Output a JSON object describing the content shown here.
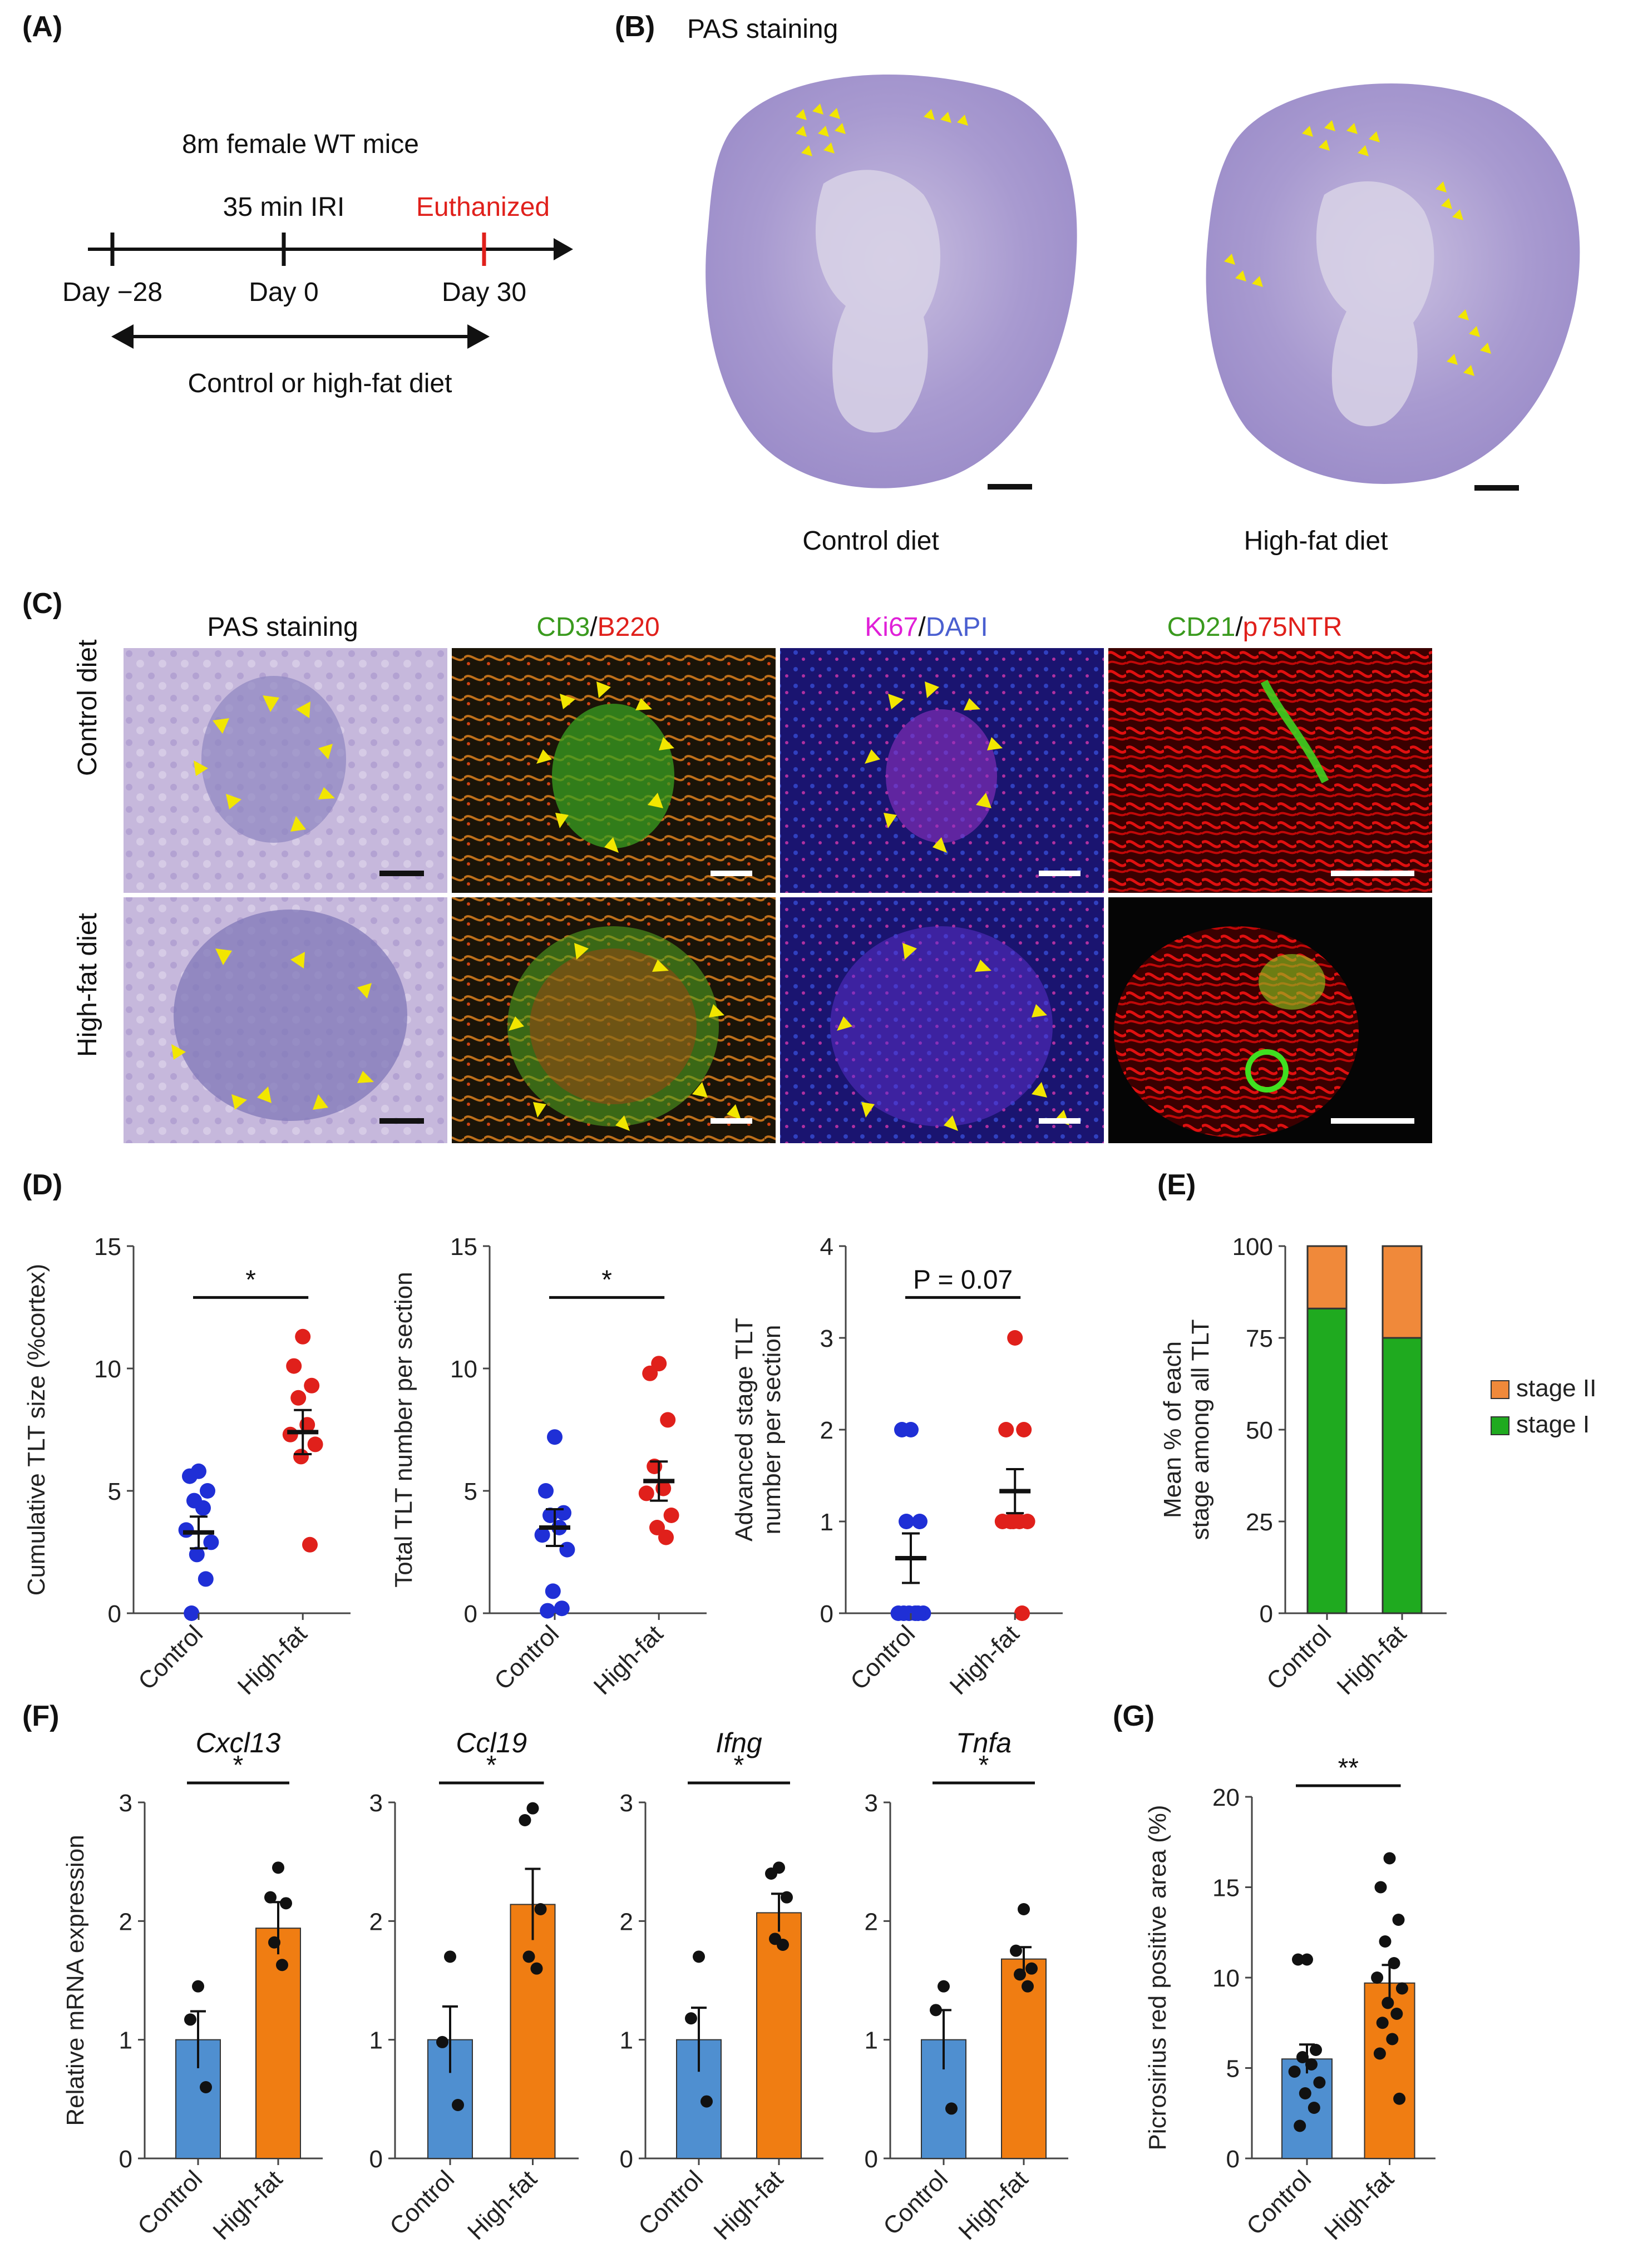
{
  "panels": {
    "A": {
      "label": "(A)",
      "cohort": "8m female WT mice",
      "events": [
        {
          "label": "35 min IRI",
          "color": "#111111"
        },
        {
          "label": "Euthanized",
          "color": "#e0201b"
        }
      ],
      "timepoints": [
        "Day −28",
        "Day 0",
        "Day 30"
      ],
      "diet_label": "Control or high-fat diet"
    },
    "B": {
      "label": "(B)",
      "title": "PAS staining",
      "captions": [
        "Control diet",
        "High-fat diet"
      ]
    },
    "C": {
      "label": "(C)",
      "columns": [
        {
          "parts": [
            {
              "text": "PAS staining",
              "color": "#111111"
            }
          ]
        },
        {
          "parts": [
            {
              "text": "CD3",
              "color": "#3a9a1e"
            },
            {
              "text": "/",
              "color": "#111111"
            },
            {
              "text": "B220",
              "color": "#e0201b"
            }
          ]
        },
        {
          "parts": [
            {
              "text": "Ki67",
              "color": "#e020d8"
            },
            {
              "text": "/",
              "color": "#111111"
            },
            {
              "text": "DAPI",
              "color": "#4a5fd0"
            }
          ]
        },
        {
          "parts": [
            {
              "text": "CD21",
              "color": "#3a9a1e"
            },
            {
              "text": "/",
              "color": "#111111"
            },
            {
              "text": "p75NTR",
              "color": "#e0201b"
            }
          ]
        }
      ],
      "rows": [
        "Control diet",
        "High-fat diet"
      ]
    },
    "D": {
      "label": "(D)"
    },
    "E": {
      "label": "(E)"
    },
    "F": {
      "label": "(F)"
    },
    "G": {
      "label": "(G)"
    }
  },
  "colors": {
    "blue_dot": "#1f2fd6",
    "red_dot": "#e0201b",
    "bar_blue": "#4f8fd0",
    "bar_orange": "#f07d12",
    "stage_green": "#1faa1f",
    "stage_orange": "#f0893a",
    "arrow_yellow": "#f2e600"
  },
  "chart_data": [
    {
      "id": "D1",
      "type": "scatter",
      "categories": [
        "Control",
        "High-fat"
      ],
      "ylabel": "Cumulative TLT size (%cortex)",
      "ylim": [
        0,
        15
      ],
      "yticks": [
        0,
        5,
        10,
        15
      ],
      "significance": "*",
      "groups": [
        {
          "name": "Control",
          "mean": 3.3,
          "sem": 0.65,
          "points": [
            5.8,
            5.6,
            5.0,
            4.6,
            4.3,
            3.4,
            2.9,
            2.4,
            1.4,
            0.0
          ]
        },
        {
          "name": "High-fat",
          "mean": 7.4,
          "sem": 0.9,
          "points": [
            11.3,
            10.1,
            9.3,
            8.8,
            7.7,
            7.3,
            6.9,
            6.4,
            2.8
          ]
        }
      ]
    },
    {
      "id": "D2",
      "type": "scatter",
      "categories": [
        "Control",
        "High-fat"
      ],
      "ylabel": "Total TLT number per section",
      "ylim": [
        0,
        15
      ],
      "yticks": [
        0,
        5,
        10,
        15
      ],
      "significance": "*",
      "groups": [
        {
          "name": "Control",
          "mean": 3.5,
          "sem": 0.75,
          "points": [
            7.2,
            5.0,
            4.1,
            4.0,
            3.5,
            3.2,
            2.6,
            0.9,
            0.2,
            0.1
          ]
        },
        {
          "name": "High-fat",
          "mean": 5.4,
          "sem": 0.8,
          "points": [
            10.2,
            9.8,
            7.9,
            6.0,
            5.1,
            4.9,
            4.0,
            3.5,
            3.1
          ]
        }
      ]
    },
    {
      "id": "D3",
      "type": "scatter",
      "categories": [
        "Control",
        "High-fat"
      ],
      "ylabel": "Advanced stage TLT number per section",
      "ylim": [
        0,
        4
      ],
      "yticks": [
        0,
        1,
        2,
        3,
        4
      ],
      "significance_text": "P = 0.07",
      "groups": [
        {
          "name": "Control",
          "mean": 0.6,
          "sem": 0.27,
          "points": [
            2.0,
            2.0,
            1.0,
            1.0,
            0.0,
            0.0,
            0.0,
            0.0,
            0.0,
            0.0
          ]
        },
        {
          "name": "High-fat",
          "mean": 1.33,
          "sem": 0.24,
          "points": [
            3.0,
            2.0,
            2.0,
            1.0,
            1.0,
            1.0,
            1.0,
            1.0,
            0.0
          ]
        }
      ]
    },
    {
      "id": "E",
      "type": "bar",
      "stacked": true,
      "categories": [
        "Control",
        "High-fat"
      ],
      "ylabel": "Mean % of each stage among all TLT",
      "ylim": [
        0,
        100
      ],
      "yticks": [
        0,
        25,
        50,
        75,
        100
      ],
      "series": [
        {
          "name": "stage I",
          "values": [
            83,
            75
          ]
        },
        {
          "name": "stage II",
          "values": [
            17,
            25
          ]
        }
      ],
      "legend": [
        "stage II",
        "stage I"
      ]
    },
    {
      "id": "F1",
      "type": "bar",
      "title": "Cxcl13",
      "categories": [
        "Control",
        "High-fat"
      ],
      "ylabel": "Relative mRNA expression",
      "ylim": [
        0,
        3
      ],
      "yticks": [
        0,
        1,
        2,
        3
      ],
      "significance": "*",
      "values": [
        1.0,
        1.94
      ],
      "sem": [
        0.24,
        0.22
      ],
      "points": [
        [
          1.45,
          1.17,
          0.6
        ],
        [
          2.45,
          2.2,
          2.15,
          1.82,
          1.63
        ]
      ]
    },
    {
      "id": "F2",
      "type": "bar",
      "title": "Ccl19",
      "categories": [
        "Control",
        "High-fat"
      ],
      "ylabel": "",
      "ylim": [
        0,
        3
      ],
      "yticks": [
        0,
        1,
        2,
        3
      ],
      "significance": "*",
      "values": [
        1.0,
        2.14
      ],
      "sem": [
        0.28,
        0.3
      ],
      "points": [
        [
          1.7,
          0.98,
          0.45
        ],
        [
          2.95,
          2.85,
          2.1,
          1.7,
          1.6
        ]
      ]
    },
    {
      "id": "F3",
      "type": "bar",
      "title": "Ifng",
      "categories": [
        "Control",
        "High-fat"
      ],
      "ylabel": "",
      "ylim": [
        0,
        3
      ],
      "yticks": [
        0,
        1,
        2,
        3
      ],
      "significance": "*",
      "values": [
        1.0,
        2.07
      ],
      "sem": [
        0.27,
        0.16
      ],
      "points": [
        [
          1.7,
          1.18,
          0.48
        ],
        [
          2.45,
          2.4,
          2.2,
          1.85,
          1.8
        ]
      ]
    },
    {
      "id": "F4",
      "type": "bar",
      "title": "Tnfa",
      "categories": [
        "Control",
        "High-fat"
      ],
      "ylabel": "",
      "ylim": [
        0,
        3
      ],
      "yticks": [
        0,
        1,
        2,
        3
      ],
      "significance": "*",
      "values": [
        1.0,
        1.68
      ],
      "sem": [
        0.25,
        0.1
      ],
      "points": [
        [
          1.45,
          1.25,
          0.42
        ],
        [
          2.1,
          1.75,
          1.6,
          1.55,
          1.45
        ]
      ]
    },
    {
      "id": "G",
      "type": "bar",
      "categories": [
        "Control",
        "High-fat"
      ],
      "ylabel": "Picrosirius red positive area (%)",
      "ylim": [
        0,
        20
      ],
      "yticks": [
        0,
        5,
        10,
        15,
        20
      ],
      "significance": "**",
      "values": [
        5.5,
        9.7
      ],
      "sem": [
        0.8,
        1.0
      ],
      "points": [
        [
          11.0,
          11.0,
          6.0,
          5.6,
          5.2,
          4.8,
          4.2,
          3.6,
          2.8,
          1.8
        ],
        [
          16.6,
          15.0,
          13.2,
          12.0,
          10.8,
          10.0,
          9.4,
          8.6,
          8.0,
          7.5,
          6.6,
          5.8,
          3.3
        ]
      ]
    }
  ]
}
